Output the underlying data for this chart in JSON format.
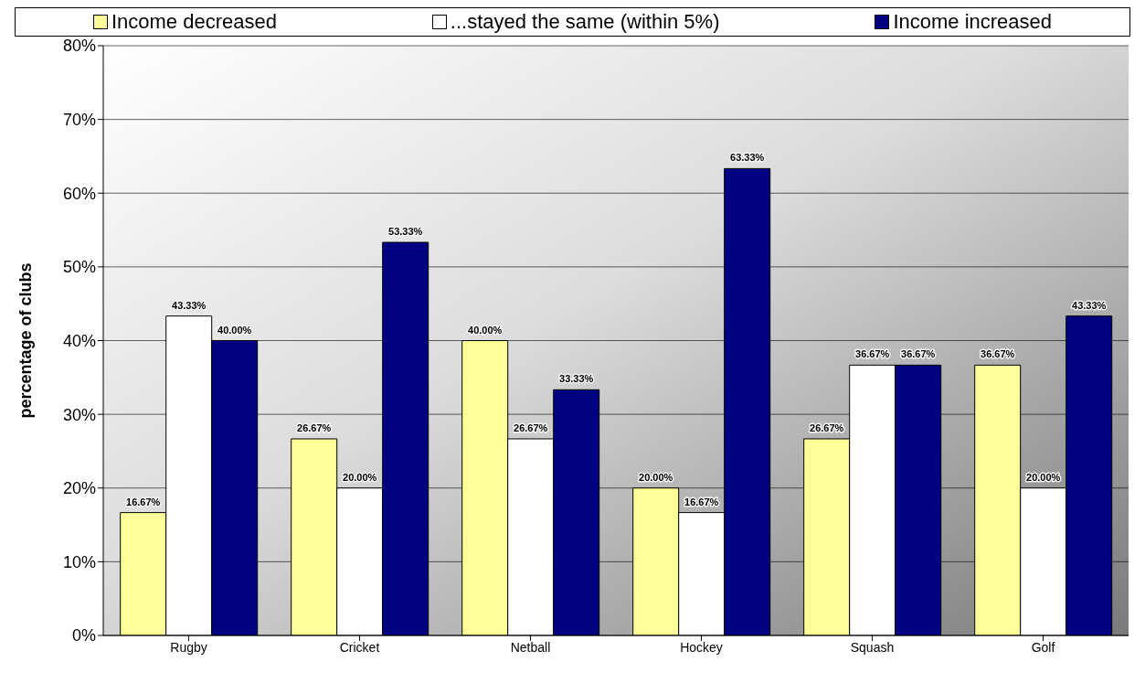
{
  "chart_data": {
    "type": "bar",
    "ylabel": "percentage of clubs",
    "categories": [
      "Rugby",
      "Cricket",
      "Netball",
      "Hockey",
      "Squash",
      "Golf"
    ],
    "series": [
      {
        "name": "Income decreased",
        "color": "#ffff99",
        "values": [
          16.67,
          26.67,
          40,
          20,
          26.67,
          36.67
        ],
        "value_labels": [
          "16.67%",
          "26.67%",
          "40.00%",
          "20.00%",
          "26.67%",
          "36.67%"
        ]
      },
      {
        "name": "...stayed the same (within 5%)",
        "color": "#ffffff",
        "values": [
          43.33,
          20,
          26.67,
          16.67,
          36.67,
          20
        ],
        "value_labels": [
          "43.33%",
          "20.00%",
          "26.67%",
          "16.67%",
          "36.67%",
          "20.00%"
        ]
      },
      {
        "name": "Income increased",
        "color": "#000080",
        "values": [
          40,
          53.33,
          33.33,
          63.33,
          36.67,
          43.33
        ],
        "value_labels": [
          "40.00%",
          "53.33%",
          "33.33%",
          "63.33%",
          "36.67%",
          "43.33%"
        ]
      }
    ],
    "ylim": [
      0,
      80
    ],
    "yticks": [
      {
        "value": 0,
        "label": "0%"
      },
      {
        "value": 10,
        "label": "10%"
      },
      {
        "value": 20,
        "label": "20%"
      },
      {
        "value": 30,
        "label": "30%"
      },
      {
        "value": 40,
        "label": "40%"
      },
      {
        "value": 50,
        "label": "50%"
      },
      {
        "value": 60,
        "label": "60%"
      },
      {
        "value": 70,
        "label": "70%"
      },
      {
        "value": 80,
        "label": "80%"
      }
    ],
    "grid": "y",
    "legend": "top"
  }
}
